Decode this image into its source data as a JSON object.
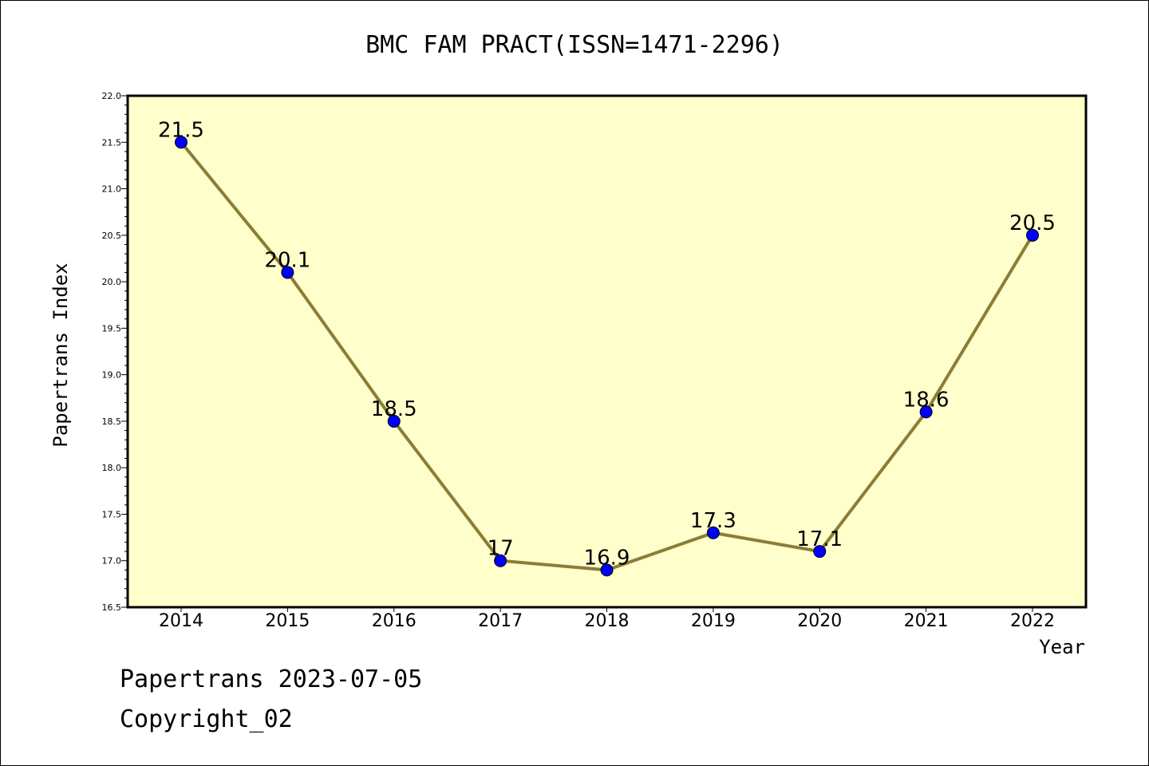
{
  "chart_data": {
    "type": "line",
    "title": "BMC FAM PRACT(ISSN=1471-2296)",
    "xlabel": "Year",
    "ylabel": "Papertrans Index",
    "categories": [
      "2014",
      "2015",
      "2016",
      "2017",
      "2018",
      "2019",
      "2020",
      "2021",
      "2022"
    ],
    "series": [
      {
        "values": [
          21.5,
          20.1,
          18.5,
          17,
          16.9,
          17.3,
          17.1,
          18.6,
          20.5
        ],
        "data_labels": [
          "21.5",
          "20.1",
          "18.5",
          "17",
          "16.9",
          "17.3",
          "17.1",
          "18.6",
          "20.5"
        ]
      }
    ],
    "ylim": [
      16.5,
      22.0
    ],
    "yticks": [
      "16.5",
      "17.0",
      "17.5",
      "18.0",
      "18.5",
      "19.0",
      "19.5",
      "20.0",
      "20.5",
      "21.0",
      "21.5",
      "22.0"
    ],
    "grid": false,
    "colors": {
      "plot_background": "#ffffcc",
      "line": "#8b7d35",
      "marker": "#0000ff"
    }
  },
  "footer": {
    "line1": "Papertrans 2023-07-05",
    "line2": "Copyright_02"
  }
}
